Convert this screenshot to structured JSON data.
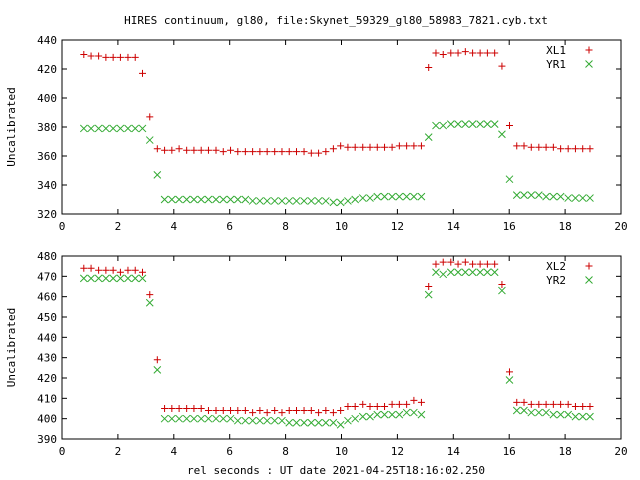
{
  "title": "HIRES continuum, gl80, file:Skynet_59329_gl80_58983_7821.cyb.txt",
  "xlabel": "rel seconds : UT date 2021-04-25T18:16:02.250",
  "colors": {
    "red": "#cc0000",
    "green": "#33aa33"
  },
  "chart_data": [
    {
      "type": "scatter",
      "title": "HIRES continuum, gl80, file:Skynet_59329_gl80_58983_7821.cyb.txt",
      "xlabel": "",
      "ylabel": "Uncalibrated",
      "xlim": [
        0,
        20
      ],
      "ylim": [
        320,
        440
      ],
      "xticks": [
        0,
        2,
        4,
        6,
        8,
        10,
        12,
        14,
        16,
        18,
        20
      ],
      "yticks": [
        320,
        340,
        360,
        380,
        400,
        420,
        440
      ],
      "legend": "top-right",
      "grid": false,
      "x": [
        0.78,
        1.04,
        1.31,
        1.57,
        1.83,
        2.09,
        2.36,
        2.62,
        2.88,
        3.14,
        3.41,
        3.67,
        3.93,
        4.19,
        4.46,
        4.72,
        4.98,
        5.24,
        5.51,
        5.77,
        6.03,
        6.29,
        6.56,
        6.82,
        7.08,
        7.34,
        7.61,
        7.87,
        8.13,
        8.39,
        8.66,
        8.92,
        9.18,
        9.44,
        9.71,
        9.97,
        10.23,
        10.49,
        10.76,
        11.02,
        11.28,
        11.54,
        11.81,
        12.07,
        12.33,
        12.59,
        12.86,
        13.12,
        13.38,
        13.64,
        13.91,
        14.17,
        14.43,
        14.69,
        14.96,
        15.22,
        15.48,
        15.74,
        16.01,
        16.27,
        16.53,
        16.79,
        17.06,
        17.32,
        17.58,
        17.84,
        18.11,
        18.37,
        18.63,
        18.89
      ],
      "series": [
        {
          "name": "XL1",
          "marker": "+",
          "color": "#cc0000",
          "values": [
            430,
            429,
            429,
            428,
            428,
            428,
            428,
            428,
            417,
            387,
            365,
            364,
            364,
            365,
            364,
            364,
            364,
            364,
            364,
            363,
            364,
            363,
            363,
            363,
            363,
            363,
            363,
            363,
            363,
            363,
            363,
            362,
            362,
            363,
            365,
            367,
            366,
            366,
            366,
            366,
            366,
            366,
            366,
            367,
            367,
            367,
            367,
            421,
            431,
            430,
            431,
            431,
            432,
            431,
            431,
            431,
            431,
            422,
            381,
            367,
            367,
            366,
            366,
            366,
            366,
            365,
            365,
            365,
            365,
            365
          ]
        },
        {
          "name": "YR1",
          "marker": "x",
          "color": "#33aa33",
          "values": [
            379,
            379,
            379,
            379,
            379,
            379,
            379,
            379,
            379,
            371,
            347,
            330,
            330,
            330,
            330,
            330,
            330,
            330,
            330,
            330,
            330,
            330,
            330,
            329,
            329,
            329,
            329,
            329,
            329,
            329,
            329,
            329,
            329,
            329,
            328,
            328,
            329,
            330,
            331,
            331,
            332,
            332,
            332,
            332,
            332,
            332,
            332,
            373,
            381,
            381,
            382,
            382,
            382,
            382,
            382,
            382,
            382,
            375,
            344,
            333,
            333,
            333,
            333,
            332,
            332,
            332,
            331,
            331,
            331,
            331
          ]
        }
      ]
    },
    {
      "type": "scatter",
      "xlabel": "rel seconds : UT date 2021-04-25T18:16:02.250",
      "ylabel": "Uncalibrated",
      "xlim": [
        0,
        20
      ],
      "ylim": [
        390,
        480
      ],
      "xticks": [
        0,
        2,
        4,
        6,
        8,
        10,
        12,
        14,
        16,
        18,
        20
      ],
      "yticks": [
        390,
        400,
        410,
        420,
        430,
        440,
        450,
        460,
        470,
        480
      ],
      "legend": "top-right",
      "grid": false,
      "x": [
        0.78,
        1.04,
        1.31,
        1.57,
        1.83,
        2.09,
        2.36,
        2.62,
        2.88,
        3.14,
        3.41,
        3.67,
        3.93,
        4.19,
        4.46,
        4.72,
        4.98,
        5.24,
        5.51,
        5.77,
        6.03,
        6.29,
        6.56,
        6.82,
        7.08,
        7.34,
        7.61,
        7.87,
        8.13,
        8.39,
        8.66,
        8.92,
        9.18,
        9.44,
        9.71,
        9.97,
        10.23,
        10.49,
        10.76,
        11.02,
        11.28,
        11.54,
        11.81,
        12.07,
        12.33,
        12.59,
        12.86,
        13.12,
        13.38,
        13.64,
        13.91,
        14.17,
        14.43,
        14.69,
        14.96,
        15.22,
        15.48,
        15.74,
        16.01,
        16.27,
        16.53,
        16.79,
        17.06,
        17.32,
        17.58,
        17.84,
        18.11,
        18.37,
        18.63,
        18.89
      ],
      "series": [
        {
          "name": "XL2",
          "marker": "+",
          "color": "#cc0000",
          "values": [
            474,
            474,
            473,
            473,
            473,
            472,
            473,
            473,
            472,
            461,
            429,
            405,
            405,
            405,
            405,
            405,
            405,
            404,
            404,
            404,
            404,
            404,
            404,
            403,
            404,
            403,
            404,
            403,
            404,
            404,
            404,
            404,
            403,
            404,
            403,
            404,
            406,
            406,
            407,
            406,
            406,
            406,
            407,
            407,
            407,
            409,
            408,
            465,
            476,
            477,
            477,
            476,
            477,
            476,
            476,
            476,
            476,
            466,
            423,
            408,
            408,
            407,
            407,
            407,
            407,
            407,
            407,
            406,
            406,
            406
          ]
        },
        {
          "name": "YR2",
          "marker": "x",
          "color": "#33aa33",
          "values": [
            469,
            469,
            469,
            469,
            469,
            469,
            469,
            469,
            469,
            457,
            424,
            400,
            400,
            400,
            400,
            400,
            400,
            400,
            400,
            400,
            400,
            399,
            399,
            399,
            399,
            399,
            399,
            399,
            398,
            398,
            398,
            398,
            398,
            398,
            398,
            397,
            399,
            400,
            401,
            401,
            402,
            402,
            402,
            402,
            403,
            403,
            402,
            461,
            472,
            471,
            472,
            472,
            472,
            472,
            472,
            472,
            472,
            463,
            419,
            404,
            404,
            403,
            403,
            403,
            402,
            402,
            402,
            401,
            401,
            401
          ]
        }
      ]
    }
  ]
}
